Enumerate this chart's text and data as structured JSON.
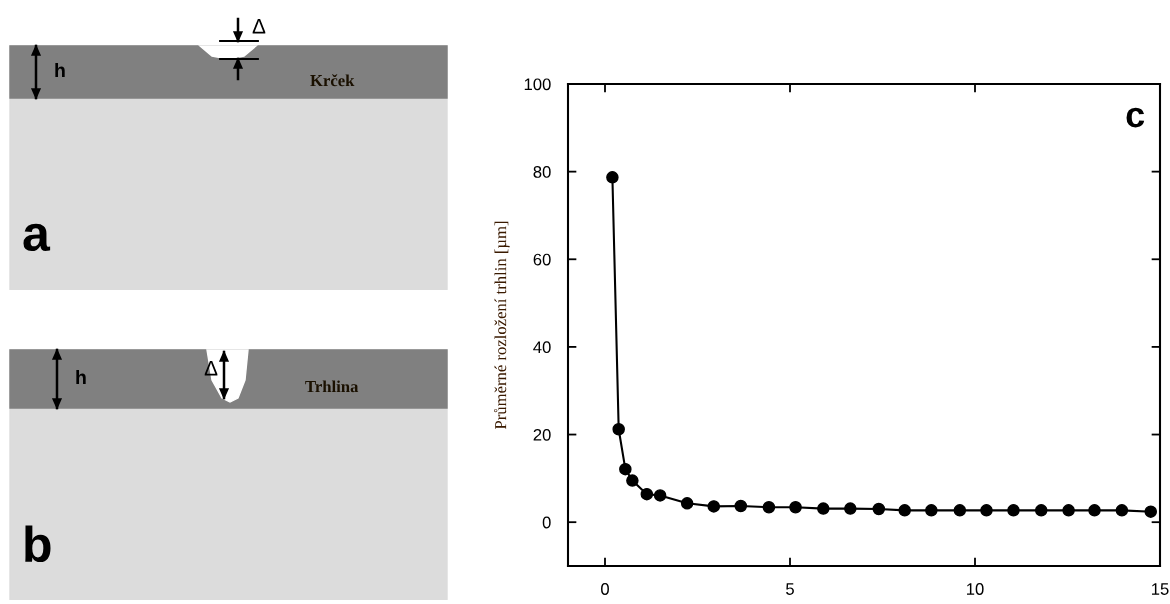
{
  "chart_data": [
    {
      "type": "other",
      "annotations": [
        "h",
        "Δ",
        "Krček",
        "a"
      ]
    },
    {
      "type": "other",
      "annotations": [
        "h",
        "Δ",
        "Trhlina",
        "b"
      ]
    },
    {
      "type": "line",
      "ylabel": "Průměrné rozložení trhlin [µm]",
      "annotations": [
        "c"
      ],
      "x": [
        0.2,
        0.37,
        0.55,
        0.74,
        1.13,
        1.49,
        2.22,
        2.94,
        3.67,
        4.43,
        5.15,
        5.9,
        6.63,
        7.4,
        8.1,
        8.82,
        9.59,
        10.31,
        11.04,
        11.79,
        12.53,
        13.23,
        13.97,
        14.75
      ],
      "series": [
        {
          "color": "#000000",
          "values": [
            78.7,
            21.2,
            12.1,
            9.5,
            6.4,
            6.1,
            4.3,
            3.6,
            3.7,
            3.4,
            3.4,
            3.1,
            3.1,
            3.0,
            2.7,
            2.7,
            2.7,
            2.7,
            2.7,
            2.7,
            2.7,
            2.7,
            2.7,
            2.4
          ]
        }
      ],
      "xlim": [
        -1,
        15
      ],
      "ylim": [
        -10,
        100
      ],
      "xticks": [
        0,
        5,
        10,
        15
      ],
      "yticks": [
        0,
        20,
        40,
        60,
        80,
        100
      ],
      "marker": "circle",
      "line_style": "solid",
      "grid": false
    }
  ]
}
